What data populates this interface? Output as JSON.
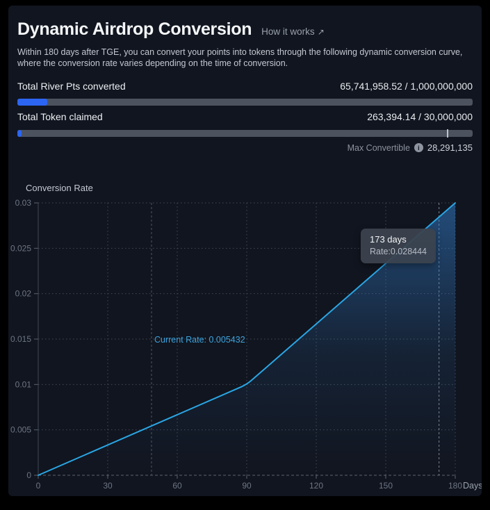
{
  "header": {
    "title": "Dynamic Airdrop Conversion",
    "link_label": "How it works",
    "link_arrow": "↗",
    "description_lines": [
      "Within 180 days after TGE, you can convert your points into tokens through the following dynamic conversion curve,",
      "where the conversion rate varies depending on the time of conversion."
    ]
  },
  "stats": [
    {
      "label": "Total River Pts converted",
      "display": "65,741,958.52 / 1,000,000,000",
      "current": 65741958.52,
      "total": 1000000000
    },
    {
      "label": "Total Token claimed",
      "display": "263,394.14 / 30,000,000",
      "current": 263394.14,
      "total": 30000000
    }
  ],
  "max_convertible": {
    "label": "Max Convertible",
    "icon": "i",
    "value": "28,291,135"
  },
  "chart_data": {
    "type": "line",
    "title": "Conversion Rate",
    "xlabel": "Days",
    "xlim": [
      0,
      180
    ],
    "ylim": [
      0,
      0.03
    ],
    "x_ticks": [
      0,
      30,
      60,
      90,
      120,
      150,
      180
    ],
    "y_ticks": [
      0,
      0.005,
      0.01,
      0.015,
      0.02,
      0.025,
      0.03
    ],
    "grid": true,
    "series": [
      {
        "name": "conversion-rate-curve",
        "x": [
          0,
          90,
          180
        ],
        "y": [
          0,
          0.01,
          0.03
        ]
      }
    ],
    "line_color": "#2aa6e4",
    "current_rate_label": "Current Rate: 0.005432",
    "markers": {
      "current_day": 48.9,
      "current_rate": 0.005432
    },
    "tooltip": {
      "day": 173,
      "rate": 0.028444,
      "day_label": "173 days",
      "rate_label": "Rate:0.028444"
    }
  }
}
